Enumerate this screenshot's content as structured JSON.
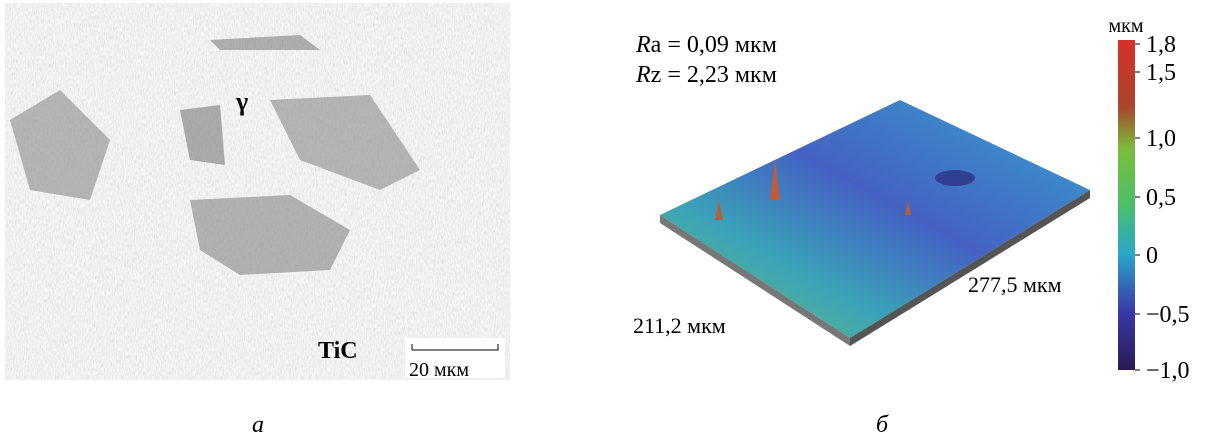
{
  "panel_a": {
    "label": "а",
    "phase_label": "γ",
    "particle_label": "TiC",
    "scale_bar": "20 мкм"
  },
  "panel_b": {
    "label": "б",
    "roughness": [
      {
        "symbol": "R",
        "rest": "a = 0,09 мкм"
      },
      {
        "symbol": "R",
        "rest": "z = 2,23 мкм"
      }
    ],
    "width_label": "211,2 мкм",
    "length_label": "277,5 мкм",
    "colorbar": {
      "unit": "мкм",
      "tick_labels": [
        "1,8",
        "1,5",
        "1,0",
        "0,5",
        "0",
        "−0,5",
        "−1,0"
      ]
    }
  }
}
